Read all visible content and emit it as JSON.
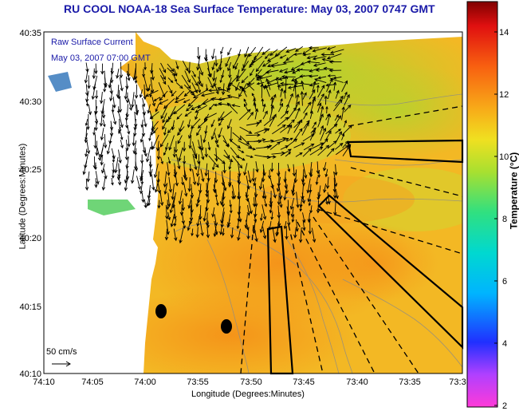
{
  "title": "RU COOL  NOAA-18  Sea Surface Temperature:  May 03, 2007 0747 GMT",
  "legend": {
    "line1": "Raw Surface Current",
    "line2": "May 03, 2007 07:00 GMT",
    "scale_label": "50 cm/s"
  },
  "axes": {
    "xlabel": "Longitude (Degrees:Minutes)",
    "ylabel": "Latitude (Degrees:Minutes)",
    "x_ticks": [
      "74:10",
      "74:05",
      "74:00",
      "73:55",
      "73:50",
      "73:45",
      "73:40",
      "73:35",
      "73:3"
    ],
    "y_ticks": [
      "40:35",
      "40:30",
      "40:25",
      "40:20",
      "40:15",
      "40:10"
    ]
  },
  "colorbar": {
    "label": "Temperature (°C)",
    "ticks": [
      "14",
      "12",
      "10",
      "8",
      "6",
      "4",
      "2"
    ],
    "range": [
      2,
      15
    ]
  },
  "colors": {
    "title": "#1a1aa8",
    "sea_warm": "#f5a21e",
    "sea_mid": "#f0d020",
    "land": "#ffffff",
    "arrows": "#000000"
  }
}
